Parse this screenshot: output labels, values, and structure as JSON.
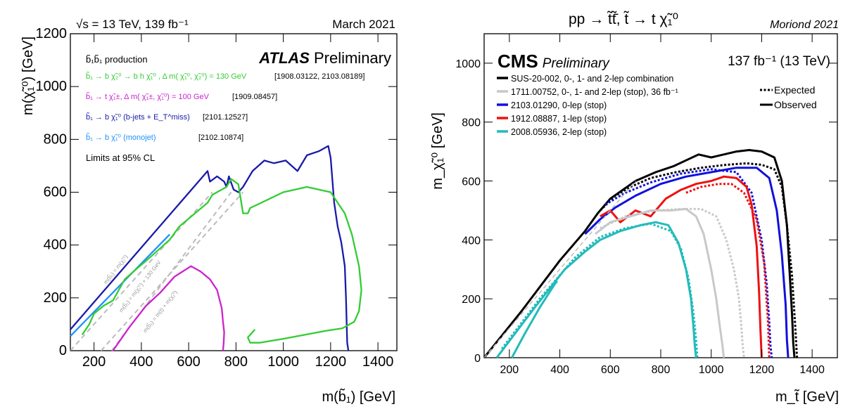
{
  "chart_data": [
    {
      "type": "line",
      "panel": "left",
      "header_left": "√s = 13 TeV, 139 fb⁻¹",
      "header_right": "March 2021",
      "experiment": "ATLAS",
      "experiment_sub": "Preliminary",
      "xlabel": "m(b̃₁) [GeV]",
      "ylabel": "m(χ̃₁⁰) [GeV]",
      "xlim": [
        100,
        1480
      ],
      "ylim": [
        0,
        1200
      ],
      "xticks": [
        200,
        400,
        600,
        800,
        1000,
        1200,
        1400
      ],
      "yticks": [
        0,
        200,
        400,
        600,
        800,
        1000,
        1200
      ],
      "legend_title": "b̃₁b̃₁ production",
      "legend": [
        {
          "label": "b̃₁ → b χ̃₂⁰ → b h χ̃₁⁰ , Δ m( χ̃₁⁰, χ̃₂⁰) = 130 GeV",
          "ref": "[1908.03122, 2103.08189]",
          "color": "#33cc33"
        },
        {
          "label": "b̃₁ → t χ̃₁±, Δ m( χ̃₁±, χ̃₁⁰) = 100 GeV",
          "ref": "[1909.08457]",
          "color": "#cc22cc"
        },
        {
          "label": "b̃₁ → b χ̃₁⁰ (b-jets + E_T^miss)",
          "ref": "[2101.12527]",
          "color": "#1a1aaa"
        },
        {
          "label": "b̃₁ → b χ̃₁⁰ (monojet)",
          "ref": "[2102.10874]",
          "color": "#1e90ff"
        }
      ],
      "cl_note": "Limits at 95% CL",
      "diagonal_labels": [
        "m(b̃₁) = m(χ̃₁⁰)",
        "m(b̃₁) = m(χ̃₁⁰) + 130 GeV",
        "m(b̃₁) = m(t) + m(χ̃₁⁰)"
      ],
      "diagonals": [
        {
          "x": [
            100,
            700
          ],
          "y": [
            0,
            600
          ]
        },
        {
          "x": [
            230,
            830
          ],
          "y": [
            0,
            600
          ]
        },
        {
          "x": [
            275,
            780
          ],
          "y": [
            0,
            600
          ]
        }
      ],
      "series": [
        {
          "key": "bjets",
          "color": "#1a1aaa",
          "x": [
            100,
            680,
            690,
            720,
            750,
            760,
            770,
            790,
            810,
            830,
            870,
            920,
            960,
            1010,
            1060,
            1100,
            1150,
            1190,
            1200,
            1215,
            1230,
            1245,
            1260,
            1265,
            1268,
            1270,
            1275
          ],
          "y": [
            80,
            680,
            640,
            660,
            640,
            620,
            660,
            610,
            600,
            620,
            680,
            720,
            710,
            720,
            680,
            740,
            755,
            775,
            730,
            560,
            470,
            410,
            320,
            200,
            100,
            30,
            0
          ]
        },
        {
          "key": "monojet",
          "color": "#1e90ff",
          "x": [
            100,
            520
          ],
          "y": [
            55,
            440
          ]
        },
        {
          "key": "bh",
          "color": "#33cc33",
          "x": [
            150,
            180,
            200,
            240,
            280,
            330,
            380,
            420,
            470,
            520,
            560,
            600,
            640,
            680,
            700,
            760,
            780,
            810,
            830,
            850,
            860,
            1000,
            1100,
            1200,
            1260,
            1290,
            1320,
            1330,
            1320,
            1300,
            1250,
            1180,
            1000,
            900,
            860,
            850,
            860,
            880
          ],
          "y": [
            60,
            100,
            140,
            170,
            190,
            270,
            310,
            340,
            380,
            420,
            470,
            500,
            530,
            560,
            590,
            620,
            650,
            630,
            520,
            520,
            540,
            600,
            620,
            600,
            520,
            440,
            320,
            230,
            150,
            110,
            85,
            75,
            45,
            30,
            30,
            50,
            60,
            80
          ]
        },
        {
          "key": "tchi",
          "color": "#cc22cc",
          "x": [
            280,
            350,
            420,
            480,
            540,
            610,
            650,
            690,
            720,
            740,
            745,
            750,
            748,
            745
          ],
          "y": [
            0,
            90,
            170,
            220,
            280,
            320,
            300,
            270,
            230,
            160,
            110,
            70,
            30,
            0
          ]
        }
      ]
    },
    {
      "type": "line",
      "panel": "right",
      "title": "pp → t̃t̃̄,  t̃ → t χ̃₁⁰",
      "header_right": "Moriond 2021",
      "experiment": "CMS",
      "experiment_sub": "Preliminary",
      "lumi": "137 fb⁻¹ (13 TeV)",
      "xlabel": "m_t̃ [GeV]",
      "ylabel": "m_χ̃₁⁰ [GeV]",
      "xlim": [
        100,
        1500
      ],
      "ylim": [
        0,
        1100
      ],
      "xticks": [
        200,
        400,
        600,
        800,
        1000,
        1200,
        1400
      ],
      "yticks": [
        0,
        200,
        400,
        600,
        800,
        1000
      ],
      "legend": [
        {
          "label": "SUS-20-002, 0-, 1- and 2-lep combination",
          "color": "#000000"
        },
        {
          "label": "1711.00752, 0-, 1- and 2-lep (stop), 36 fb⁻¹",
          "color": "#c8c8c8"
        },
        {
          "label": "2103.01290, 0-lep (stop)",
          "color": "#1010dd"
        },
        {
          "label": "1912.08887, 1-lep (stop)",
          "color": "#ee1111"
        },
        {
          "label": "2008.05936, 2-lep (stop)",
          "color": "#22bbbb"
        }
      ],
      "style_legend": [
        "Expected",
        "Observed"
      ],
      "series": [
        {
          "key": "comb_obs",
          "color": "#000000",
          "dashed": false,
          "x": [
            100,
            250,
            400,
            500,
            550,
            600,
            650,
            700,
            780,
            850,
            900,
            950,
            1000,
            1050,
            1100,
            1150,
            1200,
            1250,
            1280,
            1300,
            1310,
            1320,
            1325,
            1330
          ],
          "y": [
            0,
            160,
            330,
            430,
            490,
            540,
            570,
            600,
            630,
            650,
            670,
            690,
            680,
            690,
            700,
            705,
            700,
            680,
            600,
            450,
            300,
            150,
            50,
            0
          ]
        },
        {
          "key": "comb_exp",
          "color": "#000000",
          "dashed": true,
          "x": [
            560,
            620,
            680,
            760,
            860,
            960,
            1060,
            1140,
            1200,
            1250,
            1280,
            1300,
            1320,
            1335,
            1340
          ],
          "y": [
            500,
            550,
            580,
            610,
            630,
            645,
            655,
            660,
            655,
            640,
            580,
            450,
            280,
            80,
            0
          ]
        },
        {
          "key": "z0_obs",
          "color": "#1010dd",
          "dashed": false,
          "x": [
            500,
            560,
            620,
            700,
            800,
            900,
            1000,
            1100,
            1180,
            1230,
            1260,
            1280,
            1295,
            1300,
            1305
          ],
          "y": [
            420,
            470,
            510,
            550,
            590,
            615,
            630,
            645,
            645,
            610,
            500,
            350,
            180,
            60,
            0
          ]
        },
        {
          "key": "z0_exp",
          "color": "#1010dd",
          "dashed": true,
          "x": [
            580,
            660,
            760,
            880,
            1000,
            1100,
            1160,
            1200,
            1220,
            1230,
            1235,
            1240
          ],
          "y": [
            520,
            560,
            595,
            625,
            640,
            630,
            560,
            400,
            250,
            120,
            40,
            0
          ]
        },
        {
          "key": "one_obs",
          "color": "#ee1111",
          "dashed": false,
          "x": [
            560,
            600,
            640,
            700,
            760,
            820,
            880,
            940,
            1000,
            1050,
            1100,
            1140,
            1160,
            1180,
            1190,
            1195,
            1200
          ],
          "y": [
            480,
            500,
            460,
            500,
            480,
            540,
            570,
            590,
            600,
            615,
            610,
            580,
            520,
            380,
            220,
            100,
            0
          ]
        },
        {
          "key": "one_exp",
          "color": "#ee1111",
          "dashed": true,
          "x": [
            900,
            960,
            1030,
            1080,
            1130,
            1180,
            1210,
            1225,
            1230
          ],
          "y": [
            560,
            580,
            590,
            590,
            560,
            470,
            320,
            120,
            0
          ]
        },
        {
          "key": "old_obs",
          "color": "#c8c8c8",
          "dashed": false,
          "x": [
            540,
            600,
            680,
            760,
            840,
            900,
            940,
            970,
            1000,
            1020,
            1035,
            1045,
            1050
          ],
          "y": [
            420,
            460,
            480,
            500,
            500,
            505,
            480,
            420,
            300,
            200,
            100,
            40,
            0
          ]
        },
        {
          "key": "old_exp",
          "color": "#c8c8c8",
          "dashed": true,
          "x": [
            560,
            660,
            780,
            880,
            960,
            1020,
            1060,
            1090,
            1110,
            1120,
            1125,
            1130
          ],
          "y": [
            440,
            480,
            500,
            505,
            505,
            480,
            400,
            300,
            200,
            100,
            40,
            0
          ]
        },
        {
          "key": "two_obs",
          "color": "#22bbbb",
          "dashed": false,
          "x": [
            150,
            300,
            420,
            500,
            560,
            640,
            720,
            780,
            830,
            870,
            900,
            920,
            930,
            935,
            940
          ],
          "y": [
            0,
            170,
            300,
            360,
            400,
            430,
            450,
            460,
            450,
            390,
            300,
            200,
            100,
            40,
            0
          ]
        },
        {
          "key": "two_exp",
          "color": "#22bbbb",
          "dashed": true,
          "x": [
            170,
            320,
            460,
            560,
            660,
            760,
            840,
            880,
            910,
            930,
            940,
            945
          ],
          "y": [
            30,
            200,
            340,
            410,
            440,
            455,
            430,
            370,
            270,
            150,
            60,
            0
          ]
        },
        {
          "key": "two_inner",
          "color": "#22bbbb",
          "dashed": false,
          "x": [
            210,
            260,
            320,
            380,
            390
          ],
          "y": [
            0,
            80,
            170,
            250,
            260
          ]
        },
        {
          "key": "diag",
          "color": "#bbbbbb",
          "dashed": true,
          "x": [
            100,
            700
          ],
          "y": [
            0,
            600
          ]
        }
      ]
    }
  ]
}
